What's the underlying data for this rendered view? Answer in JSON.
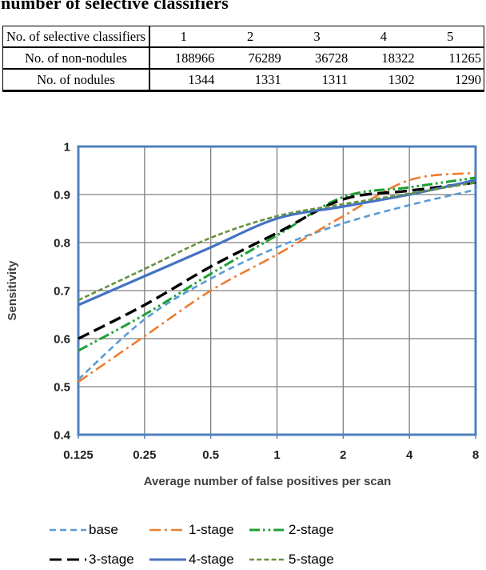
{
  "title": "number of selective classifiers",
  "table": {
    "rows": [
      {
        "label": "No. of selective classifiers",
        "values": [
          "1",
          "2",
          "3",
          "4",
          "5"
        ]
      },
      {
        "label": "No. of non-nodules",
        "values": [
          "188966",
          "76289",
          "36728",
          "18322",
          "11265"
        ]
      },
      {
        "label": "No. of nodules",
        "values": [
          "1344",
          "1331",
          "1311",
          "1302",
          "1290"
        ]
      }
    ]
  },
  "chart_data": {
    "type": "line",
    "title": "",
    "xlabel": "Average number of false positives per scan",
    "ylabel": "Sensitivity",
    "x_scale": "log2",
    "x_ticks": [
      "0.125",
      "0.25",
      "0.5",
      "1",
      "2",
      "4",
      "8"
    ],
    "x_values": [
      0.125,
      0.25,
      0.5,
      1,
      2,
      4,
      8
    ],
    "ylim": [
      0.4,
      1.0
    ],
    "y_tick_labels": [
      "1",
      "0.9",
      "0.8",
      "0.7",
      "0.6",
      "0.5",
      "0.4"
    ],
    "grid": true,
    "legend_position": "bottom",
    "plot_border_color": "#4F81BD",
    "gridline_color": "#7F7F7F",
    "series": [
      {
        "name": "base",
        "color": "#5B9BD5",
        "dash": "8 5",
        "width": 2.6,
        "values": [
          0.515,
          0.64,
          0.725,
          0.79,
          0.84,
          0.878,
          0.91
        ]
      },
      {
        "name": "1-stage",
        "color": "#ED7D31",
        "dash": "14 5 3 5",
        "width": 2.6,
        "values": [
          0.51,
          0.605,
          0.7,
          0.775,
          0.855,
          0.93,
          0.945
        ]
      },
      {
        "name": "2-stage",
        "color": "#1EA032",
        "dash": "13 4 2.6 4 2.6 4",
        "width": 3.0,
        "values": [
          0.575,
          0.65,
          0.735,
          0.815,
          0.895,
          0.915,
          0.935
        ]
      },
      {
        "name": "3-stage",
        "color": "#000000",
        "dash": "15 7",
        "width": 3.4,
        "values": [
          0.6,
          0.67,
          0.75,
          0.82,
          0.89,
          0.908,
          0.925
        ]
      },
      {
        "name": "4-stage",
        "color": "#4472C4",
        "dash": "",
        "width": 3.2,
        "values": [
          0.67,
          0.73,
          0.79,
          0.85,
          0.875,
          0.9,
          0.93
        ]
      },
      {
        "name": "5-stage",
        "color": "#67913F",
        "dash": "6 3.2",
        "width": 2.6,
        "values": [
          0.68,
          0.745,
          0.81,
          0.855,
          0.88,
          0.902,
          0.925
        ]
      }
    ]
  }
}
